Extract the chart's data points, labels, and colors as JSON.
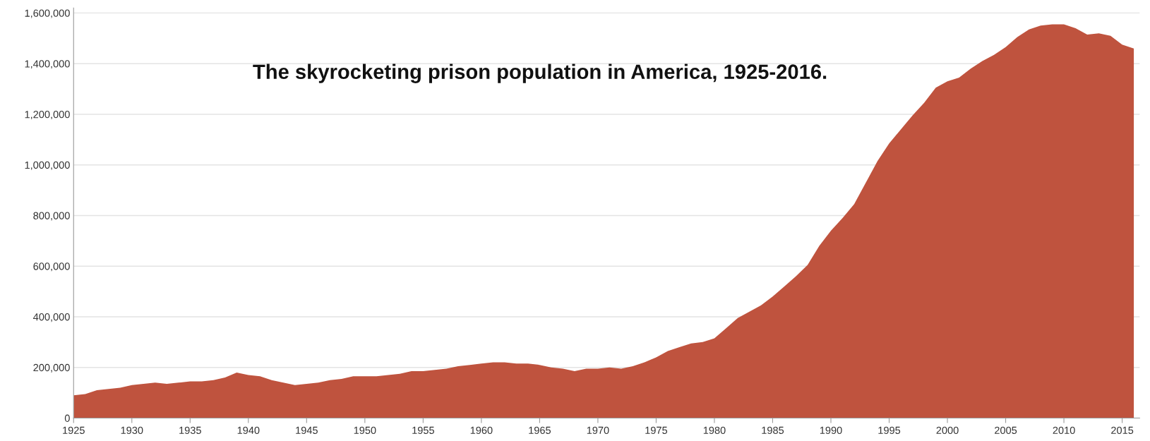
{
  "chart_data": {
    "type": "area",
    "title": "The skyrocketing prison population in America, 1925-2016.",
    "x": [
      1925,
      1926,
      1927,
      1928,
      1929,
      1930,
      1931,
      1932,
      1933,
      1934,
      1935,
      1936,
      1937,
      1938,
      1939,
      1940,
      1941,
      1942,
      1943,
      1944,
      1945,
      1946,
      1947,
      1948,
      1949,
      1950,
      1951,
      1952,
      1953,
      1954,
      1955,
      1956,
      1957,
      1958,
      1959,
      1960,
      1961,
      1962,
      1963,
      1964,
      1965,
      1966,
      1967,
      1968,
      1969,
      1970,
      1971,
      1972,
      1973,
      1974,
      1975,
      1976,
      1977,
      1978,
      1979,
      1980,
      1981,
      1982,
      1983,
      1984,
      1985,
      1986,
      1987,
      1988,
      1989,
      1990,
      1991,
      1992,
      1993,
      1994,
      1995,
      1996,
      1997,
      1998,
      1999,
      2000,
      2001,
      2002,
      2003,
      2004,
      2005,
      2006,
      2007,
      2008,
      2009,
      2010,
      2011,
      2012,
      2013,
      2014,
      2015,
      2016
    ],
    "series": [
      {
        "color": "#bf533e",
        "values": [
          90000,
          95000,
          110000,
          115000,
          120000,
          130000,
          135000,
          140000,
          135000,
          140000,
          145000,
          145000,
          150000,
          160000,
          180000,
          170000,
          165000,
          150000,
          140000,
          130000,
          135000,
          140000,
          150000,
          155000,
          165000,
          165000,
          165000,
          170000,
          175000,
          185000,
          185000,
          190000,
          195000,
          205000,
          210000,
          215000,
          220000,
          220000,
          215000,
          215000,
          210000,
          200000,
          195000,
          185000,
          195000,
          195000,
          200000,
          195000,
          205000,
          220000,
          240000,
          265000,
          280000,
          295000,
          300000,
          315000,
          355000,
          395000,
          420000,
          445000,
          480000,
          520000,
          560000,
          605000,
          680000,
          740000,
          790000,
          845000,
          930000,
          1015000,
          1085000,
          1140000,
          1195000,
          1245000,
          1305000,
          1330000,
          1345000,
          1380000,
          1410000,
          1435000,
          1465000,
          1505000,
          1535000,
          1550000,
          1555000,
          1555000,
          1540000,
          1515000,
          1520000,
          1510000,
          1475000,
          1460000
        ]
      }
    ],
    "xlim": [
      1925,
      2016.5
    ],
    "xticks": [
      1925,
      1930,
      1935,
      1940,
      1945,
      1950,
      1955,
      1960,
      1965,
      1970,
      1975,
      1980,
      1985,
      1990,
      1995,
      2000,
      2005,
      2010,
      2015
    ],
    "ylim": [
      0,
      1620000
    ],
    "yticks": [
      {
        "value": 0,
        "label": "0"
      },
      {
        "value": 200000,
        "label": "200,000"
      },
      {
        "value": 400000,
        "label": "400,000"
      },
      {
        "value": 600000,
        "label": "600,000"
      },
      {
        "value": 800000,
        "label": "800,000"
      },
      {
        "value": 1000000,
        "label": "1,000,000"
      },
      {
        "value": 1200000,
        "label": "1,200,000"
      },
      {
        "value": 1400000,
        "label": "1,400,000"
      },
      {
        "value": 1600000,
        "label": "1,600,000"
      }
    ],
    "grid": "y"
  }
}
